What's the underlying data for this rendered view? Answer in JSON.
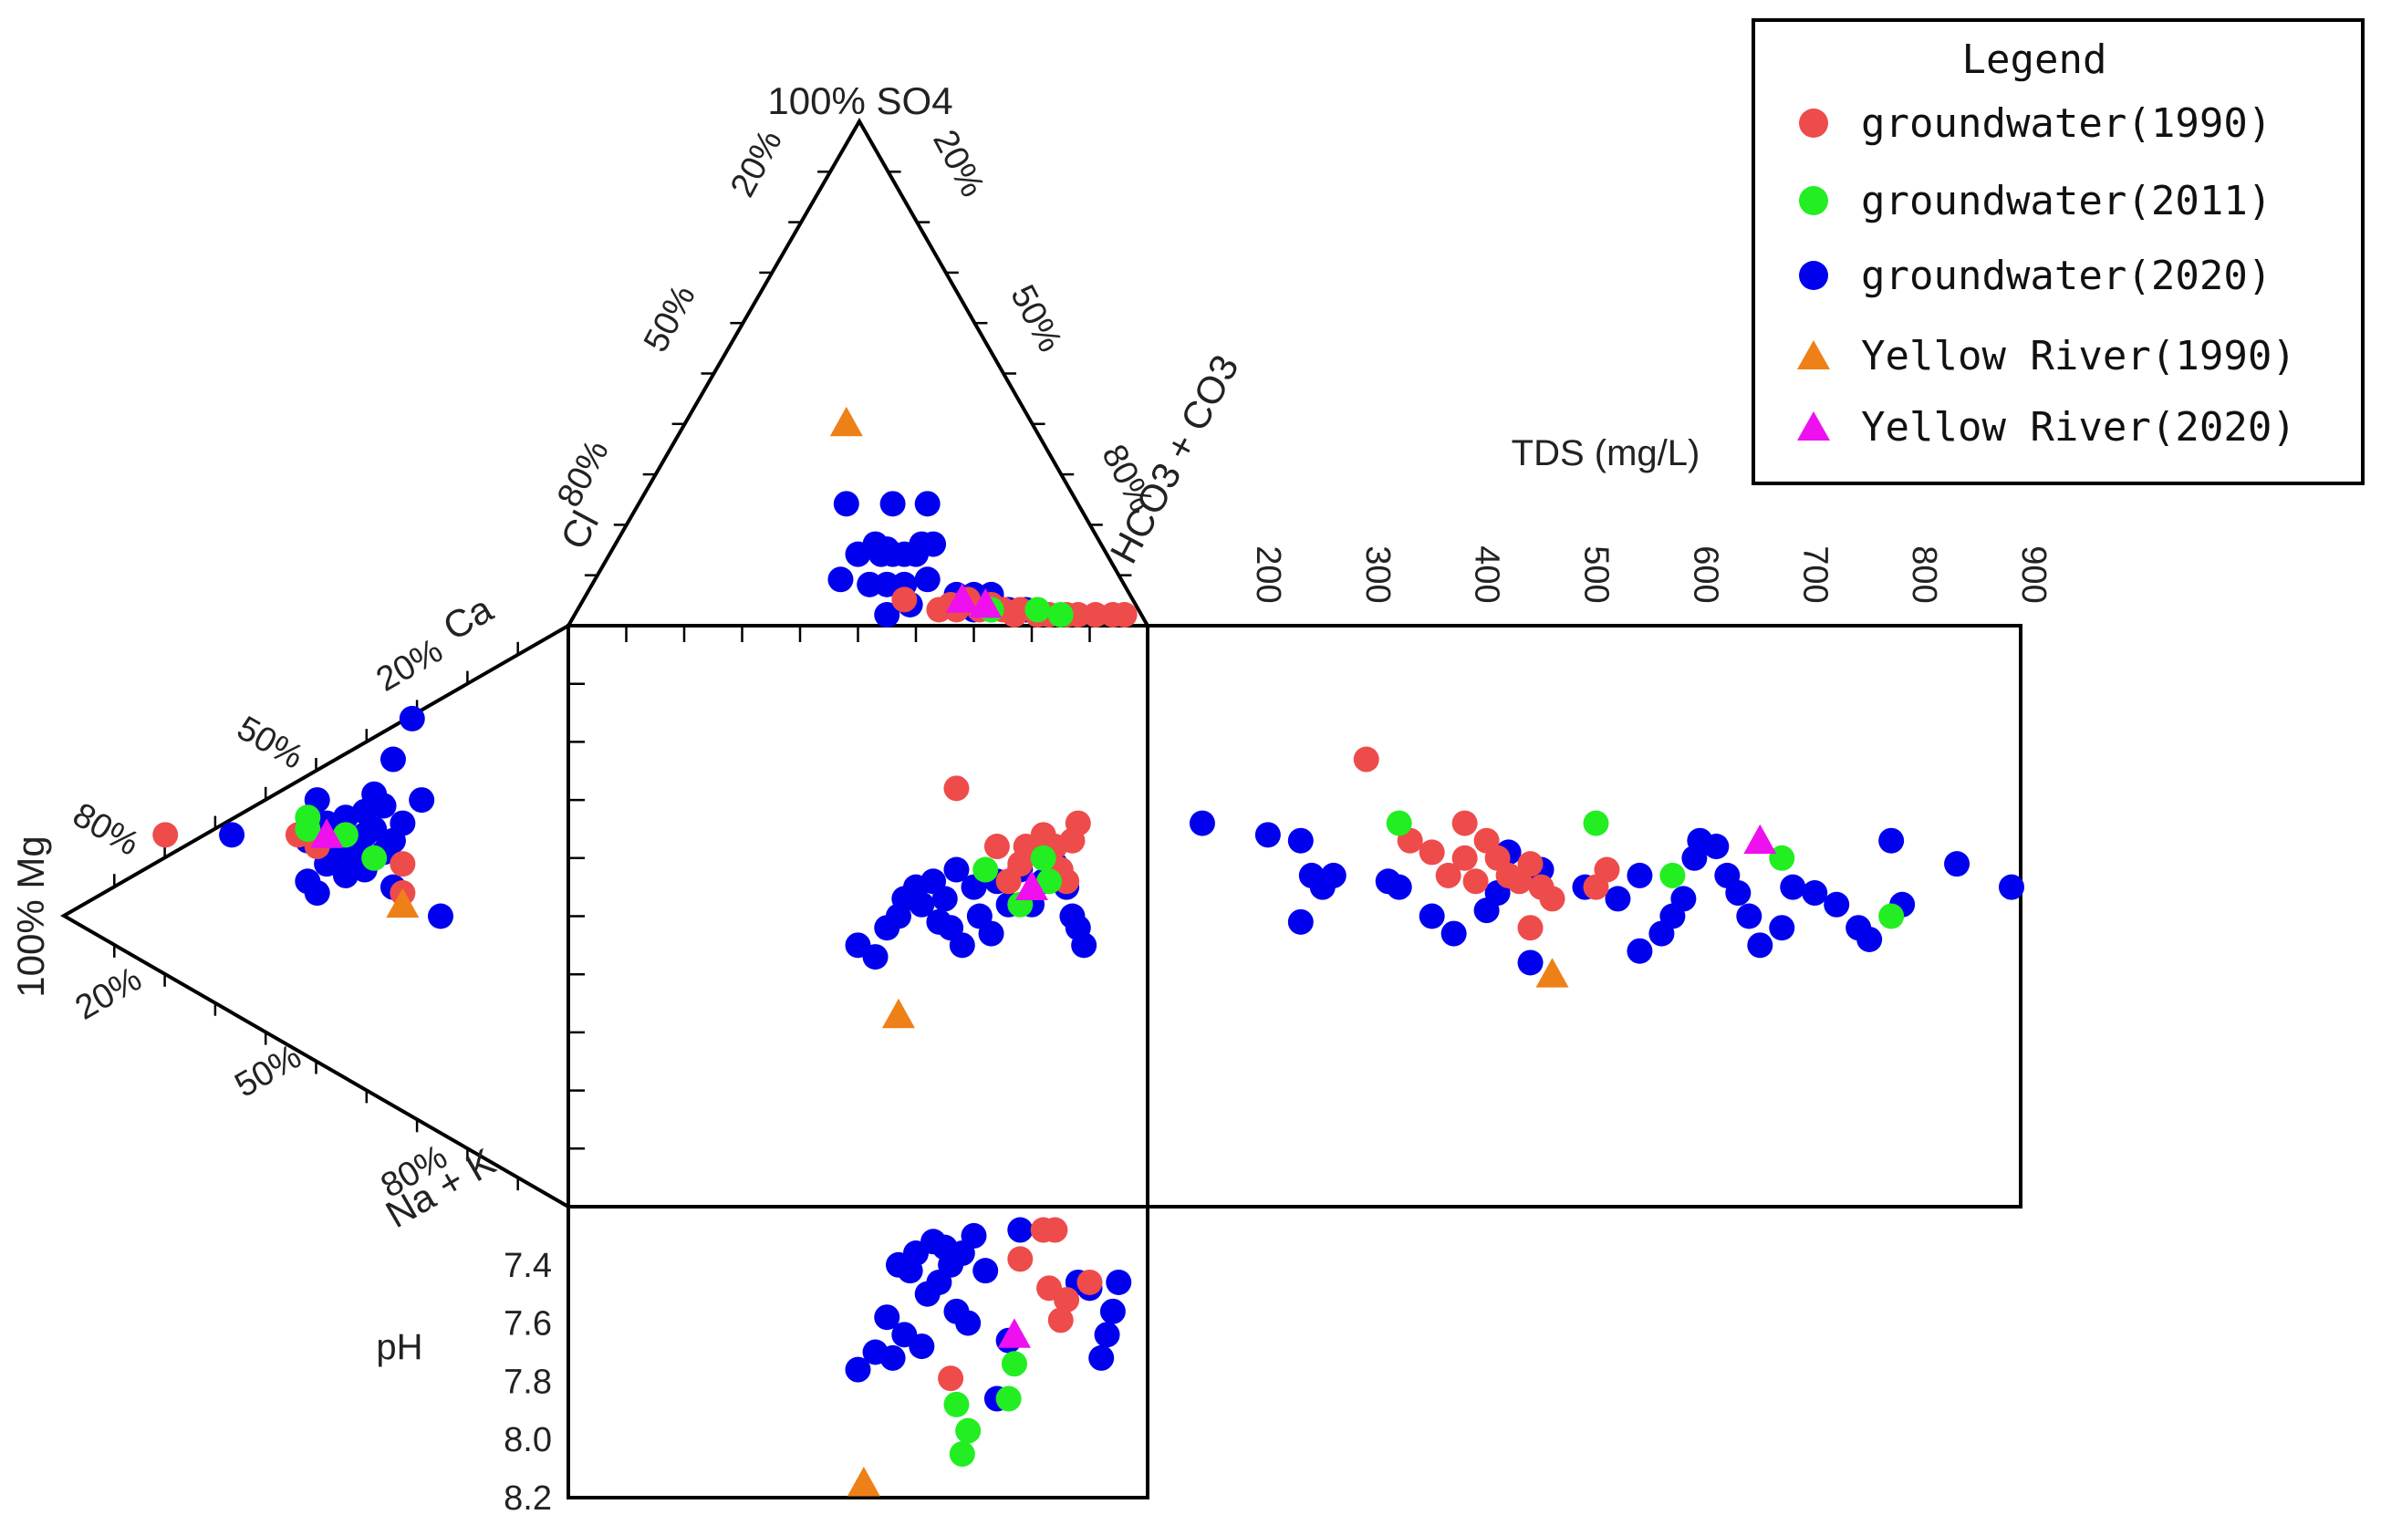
{
  "chart_data": {
    "type": "scatter",
    "title": "",
    "colors": {
      "gw1990": "#ee4b4b",
      "gw2011": "#22ee22",
      "gw2020": "#0000ee",
      "yr1990": "#ee8018",
      "yr2020": "#ee10ee"
    },
    "labels": {
      "so4_apex": "100% SO4",
      "mg_apex": "100% Mg",
      "cl": "Cl",
      "hco3": "HCO3 + CO3",
      "ca": "Ca",
      "nak": "Na + K",
      "tds": "TDS (mg/L)",
      "ph": "pH"
    },
    "anion_left_ticks": [
      "20%",
      "50%",
      "80%"
    ],
    "anion_right_ticks": [
      "20%",
      "50%",
      "80%"
    ],
    "cation_upper_ticks": [
      "20%",
      "50%",
      "80%"
    ],
    "cation_lower_ticks": [
      "20%",
      "50%",
      "80%"
    ],
    "tds_ticks": [
      "200",
      "300",
      "400",
      "500",
      "600",
      "700",
      "800",
      "900"
    ],
    "ph_ticks": [
      "7.4",
      "7.6",
      "7.8",
      "8.0",
      "8.2"
    ],
    "legend": {
      "title": "Legend",
      "items": [
        {
          "key": "gw1990",
          "label": "groundwater(1990)",
          "marker": "circle"
        },
        {
          "key": "gw2011",
          "label": "groundwater(2011)",
          "marker": "circle"
        },
        {
          "key": "gw2020",
          "label": "groundwater(2020)",
          "marker": "circle"
        },
        {
          "key": "yr1990",
          "label": "Yellow River(1990)",
          "marker": "triangle"
        },
        {
          "key": "yr2020",
          "label": "Yellow River(2020)",
          "marker": "triangle"
        }
      ]
    },
    "anion_series": [
      {
        "key": "gw2020",
        "marker": "circle",
        "points": [
          [
            0.48,
            0.22
          ],
          [
            0.56,
            0.22
          ],
          [
            0.62,
            0.22
          ],
          [
            0.5,
            0.12
          ],
          [
            0.53,
            0.14
          ],
          [
            0.54,
            0.12
          ],
          [
            0.55,
            0.13
          ],
          [
            0.56,
            0.12
          ],
          [
            0.58,
            0.12
          ],
          [
            0.6,
            0.12
          ],
          [
            0.61,
            0.14
          ],
          [
            0.63,
            0.14
          ],
          [
            0.47,
            0.07
          ],
          [
            0.52,
            0.06
          ],
          [
            0.55,
            0.06
          ],
          [
            0.58,
            0.06
          ],
          [
            0.62,
            0.07
          ],
          [
            0.67,
            0.04
          ],
          [
            0.7,
            0.04
          ],
          [
            0.73,
            0.04
          ],
          [
            0.7,
            0.01
          ],
          [
            0.73,
            0.01
          ],
          [
            0.76,
            0.01
          ],
          [
            0.79,
            0.01
          ],
          [
            0.55,
            0.0
          ],
          [
            0.59,
            0.02
          ]
        ]
      },
      {
        "key": "gw1990",
        "marker": "circle",
        "points": [
          [
            0.58,
            0.03
          ],
          [
            0.64,
            0.01
          ],
          [
            0.66,
            0.02
          ],
          [
            0.67,
            0.01
          ],
          [
            0.69,
            0.03
          ],
          [
            0.71,
            0.01
          ],
          [
            0.73,
            0.02
          ],
          [
            0.75,
            0.01
          ],
          [
            0.77,
            0.0
          ],
          [
            0.78,
            0.01
          ],
          [
            0.81,
            0.0
          ],
          [
            0.83,
            0.0
          ],
          [
            0.86,
            0.0
          ],
          [
            0.88,
            0.0
          ],
          [
            0.91,
            0.0
          ],
          [
            0.94,
            0.0
          ],
          [
            0.96,
            0.0
          ]
        ]
      },
      {
        "key": "gw2011",
        "marker": "circle",
        "points": [
          [
            0.73,
            0.01
          ],
          [
            0.81,
            0.01
          ],
          [
            0.85,
            0.0
          ]
        ]
      },
      {
        "key": "yr1990",
        "marker": "triangle",
        "points": [
          [
            0.48,
            0.38
          ]
        ]
      },
      {
        "key": "yr2020",
        "marker": "triangle",
        "points": [
          [
            0.68,
            0.03
          ],
          [
            0.72,
            0.02
          ]
        ]
      }
    ],
    "cation_series": [
      {
        "key": "gw2020",
        "marker": "circle",
        "points": [
          [
            0.38,
            0.03
          ],
          [
            0.45,
            0.05
          ],
          [
            0.51,
            0.07
          ],
          [
            0.52,
            0.02
          ],
          [
            0.52,
            0.13
          ],
          [
            0.53,
            0.06
          ],
          [
            0.54,
            0.08
          ],
          [
            0.55,
            0.1
          ],
          [
            0.56,
            0.04
          ],
          [
            0.56,
            0.12
          ],
          [
            0.57,
            0.07
          ],
          [
            0.58,
            0.08
          ],
          [
            0.59,
            0.05
          ],
          [
            0.59,
            0.14
          ],
          [
            0.6,
            0.09
          ],
          [
            0.61,
            0.06
          ],
          [
            0.61,
            0.11
          ],
          [
            0.62,
            0.09
          ],
          [
            0.63,
            0.12
          ],
          [
            0.64,
            0.08
          ],
          [
            0.65,
            0.1
          ],
          [
            0.67,
            0.05
          ],
          [
            0.58,
            0.22
          ],
          [
            0.66,
            0.14
          ],
          [
            0.68,
            0.13
          ],
          [
            0.72,
            0.0
          ]
        ]
      },
      {
        "key": "gw1990",
        "marker": "circle",
        "points": [
          [
            0.58,
            0.29
          ],
          [
            0.58,
            0.15
          ],
          [
            0.6,
            0.13
          ],
          [
            0.63,
            0.04
          ],
          [
            0.68,
            0.04
          ]
        ]
      },
      {
        "key": "gw2011",
        "marker": "circle",
        "points": [
          [
            0.55,
            0.14
          ],
          [
            0.57,
            0.14
          ],
          [
            0.58,
            0.1
          ],
          [
            0.62,
            0.07
          ]
        ]
      },
      {
        "key": "yr1990",
        "marker": "triangle",
        "points": [
          [
            0.7,
            0.04
          ]
        ]
      },
      {
        "key": "yr2020",
        "marker": "triangle",
        "points": [
          [
            0.58,
            0.12
          ]
        ]
      }
    ],
    "diamond_series": [
      {
        "key": "gw2020",
        "marker": "circle",
        "points": [
          [
            0.5,
            0.45
          ],
          [
            0.53,
            0.43
          ],
          [
            0.55,
            0.48
          ],
          [
            0.57,
            0.5
          ],
          [
            0.58,
            0.53
          ],
          [
            0.6,
            0.55
          ],
          [
            0.61,
            0.52
          ],
          [
            0.63,
            0.56
          ],
          [
            0.64,
            0.49
          ],
          [
            0.65,
            0.53
          ],
          [
            0.66,
            0.48
          ],
          [
            0.67,
            0.58
          ],
          [
            0.68,
            0.45
          ],
          [
            0.7,
            0.55
          ],
          [
            0.71,
            0.5
          ],
          [
            0.73,
            0.47
          ],
          [
            0.74,
            0.56
          ],
          [
            0.76,
            0.52
          ],
          [
            0.78,
            0.58
          ],
          [
            0.8,
            0.52
          ],
          [
            0.82,
            0.56
          ],
          [
            0.84,
            0.59
          ],
          [
            0.86,
            0.55
          ],
          [
            0.87,
            0.5
          ],
          [
            0.88,
            0.48
          ],
          [
            0.89,
            0.45
          ]
        ]
      },
      {
        "key": "gw1990",
        "marker": "circle",
        "points": [
          [
            0.67,
            0.72
          ],
          [
            0.74,
            0.62
          ],
          [
            0.76,
            0.56
          ],
          [
            0.78,
            0.59
          ],
          [
            0.79,
            0.62
          ],
          [
            0.81,
            0.61
          ],
          [
            0.82,
            0.64
          ],
          [
            0.84,
            0.62
          ],
          [
            0.85,
            0.58
          ],
          [
            0.86,
            0.56
          ],
          [
            0.87,
            0.63
          ],
          [
            0.88,
            0.66
          ]
        ]
      },
      {
        "key": "gw2011",
        "marker": "circle",
        "points": [
          [
            0.72,
            0.58
          ],
          [
            0.78,
            0.52
          ],
          [
            0.82,
            0.6
          ],
          [
            0.83,
            0.56
          ]
        ]
      },
      {
        "key": "yr1990",
        "marker": "triangle",
        "points": [
          [
            0.57,
            0.33
          ]
        ]
      },
      {
        "key": "yr2020",
        "marker": "triangle",
        "points": [
          [
            0.8,
            0.55
          ]
        ]
      }
    ],
    "tds_series": [
      {
        "key": "gw2020",
        "marker": "circle",
        "y_unit": "diamond_height",
        "points": [
          [
            160,
            0.66
          ],
          [
            220,
            0.64
          ],
          [
            250,
            0.63
          ],
          [
            260,
            0.57
          ],
          [
            270,
            0.55
          ],
          [
            280,
            0.57
          ],
          [
            330,
            0.56
          ],
          [
            340,
            0.55
          ],
          [
            370,
            0.5
          ],
          [
            390,
            0.47
          ],
          [
            420,
            0.51
          ],
          [
            430,
            0.54
          ],
          [
            440,
            0.61
          ],
          [
            470,
            0.58
          ],
          [
            510,
            0.55
          ],
          [
            540,
            0.53
          ],
          [
            560,
            0.57
          ],
          [
            580,
            0.47
          ],
          [
            590,
            0.5
          ],
          [
            600,
            0.53
          ],
          [
            610,
            0.6
          ],
          [
            615,
            0.63
          ],
          [
            630,
            0.62
          ],
          [
            640,
            0.57
          ],
          [
            650,
            0.54
          ],
          [
            660,
            0.5
          ],
          [
            670,
            0.45
          ],
          [
            690,
            0.48
          ],
          [
            700,
            0.55
          ],
          [
            720,
            0.54
          ],
          [
            740,
            0.52
          ],
          [
            760,
            0.48
          ],
          [
            770,
            0.46
          ],
          [
            790,
            0.63
          ],
          [
            800,
            0.52
          ],
          [
            850,
            0.59
          ],
          [
            900,
            0.55
          ],
          [
            460,
            0.42
          ],
          [
            250,
            0.49
          ],
          [
            560,
            0.44
          ]
        ]
      },
      {
        "key": "gw1990",
        "marker": "circle",
        "y_unit": "diamond_height",
        "points": [
          [
            310,
            0.77
          ],
          [
            350,
            0.63
          ],
          [
            370,
            0.61
          ],
          [
            385,
            0.57
          ],
          [
            400,
            0.6
          ],
          [
            410,
            0.56
          ],
          [
            420,
            0.63
          ],
          [
            430,
            0.6
          ],
          [
            440,
            0.57
          ],
          [
            450,
            0.56
          ],
          [
            460,
            0.59
          ],
          [
            470,
            0.55
          ],
          [
            480,
            0.53
          ],
          [
            520,
            0.55
          ],
          [
            530,
            0.58
          ],
          [
            460,
            0.48
          ],
          [
            400,
            0.66
          ]
        ]
      },
      {
        "key": "gw2011",
        "marker": "circle",
        "y_unit": "diamond_height",
        "points": [
          [
            340,
            0.66
          ],
          [
            520,
            0.66
          ],
          [
            590,
            0.57
          ],
          [
            690,
            0.6
          ],
          [
            790,
            0.5
          ]
        ]
      },
      {
        "key": "yr1990",
        "marker": "triangle",
        "y_unit": "diamond_height",
        "points": [
          [
            480,
            0.4
          ]
        ]
      },
      {
        "key": "yr2020",
        "marker": "triangle",
        "y_unit": "diamond_height",
        "points": [
          [
            670,
            0.63
          ]
        ]
      }
    ],
    "ph_series": [
      {
        "key": "gw2020",
        "marker": "circle",
        "points": [
          [
            0.5,
            7.76
          ],
          [
            0.53,
            7.7
          ],
          [
            0.55,
            7.58
          ],
          [
            0.56,
            7.72
          ],
          [
            0.57,
            7.4
          ],
          [
            0.58,
            7.64
          ],
          [
            0.59,
            7.42
          ],
          [
            0.6,
            7.36
          ],
          [
            0.61,
            7.68
          ],
          [
            0.62,
            7.5
          ],
          [
            0.63,
            7.32
          ],
          [
            0.64,
            7.46
          ],
          [
            0.65,
            7.34
          ],
          [
            0.66,
            7.4
          ],
          [
            0.67,
            7.56
          ],
          [
            0.68,
            7.36
          ],
          [
            0.69,
            7.6
          ],
          [
            0.7,
            7.3
          ],
          [
            0.72,
            7.42
          ],
          [
            0.74,
            7.86
          ],
          [
            0.76,
            7.66
          ],
          [
            0.78,
            7.28
          ],
          [
            0.88,
            7.46
          ],
          [
            0.9,
            7.48
          ],
          [
            0.92,
            7.72
          ],
          [
            0.93,
            7.64
          ],
          [
            0.94,
            7.56
          ],
          [
            0.95,
            7.46
          ]
        ]
      },
      {
        "key": "gw1990",
        "marker": "circle",
        "points": [
          [
            0.66,
            7.79
          ],
          [
            0.78,
            7.38
          ],
          [
            0.82,
            7.28
          ],
          [
            0.84,
            7.28
          ],
          [
            0.83,
            7.48
          ],
          [
            0.86,
            7.52
          ],
          [
            0.85,
            7.59
          ],
          [
            0.9,
            7.46
          ]
        ]
      },
      {
        "key": "gw2011",
        "marker": "circle",
        "points": [
          [
            0.67,
            7.88
          ],
          [
            0.69,
            7.97
          ],
          [
            0.68,
            8.05
          ],
          [
            0.76,
            7.86
          ],
          [
            0.77,
            7.74
          ]
        ]
      },
      {
        "key": "yr1990",
        "marker": "triangle",
        "points": [
          [
            0.51,
            8.15
          ]
        ]
      },
      {
        "key": "yr2020",
        "marker": "triangle",
        "points": [
          [
            0.77,
            7.64
          ]
        ]
      }
    ]
  }
}
